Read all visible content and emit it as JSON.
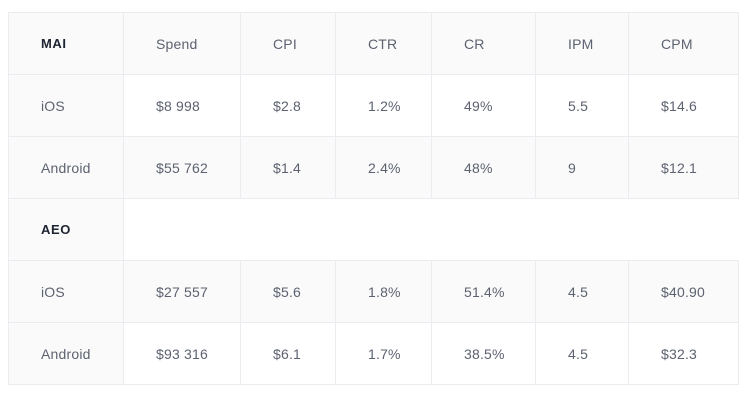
{
  "sections": [
    {
      "title": "MAI",
      "columns": [
        "Spend",
        "CPI",
        "CTR",
        "CR",
        "IPM",
        "CPM"
      ],
      "rows": [
        {
          "platform": "iOS",
          "cells": [
            "$8 998",
            "$2.8",
            "1.2%",
            "49%",
            "5.5",
            "$14.6"
          ]
        },
        {
          "platform": "Android",
          "cells": [
            "$55 762",
            "$1.4",
            "2.4%",
            "48%",
            "9",
            "$12.1"
          ]
        }
      ]
    },
    {
      "title": "AEO",
      "rows": [
        {
          "platform": "iOS",
          "cells": [
            "$27 557",
            "$5.6",
            "1.8%",
            "51.4%",
            "4.5",
            "$40.90"
          ]
        },
        {
          "platform": "Android",
          "cells": [
            "$93 316",
            "$6.1",
            "1.7%",
            "38.5%",
            "4.5",
            "$32.3"
          ]
        }
      ]
    }
  ]
}
